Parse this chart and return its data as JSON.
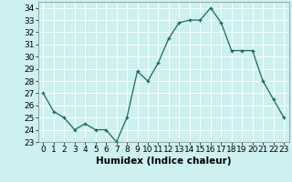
{
  "x": [
    0,
    1,
    2,
    3,
    4,
    5,
    6,
    7,
    8,
    9,
    10,
    11,
    12,
    13,
    14,
    15,
    16,
    17,
    18,
    19,
    20,
    21,
    22,
    23
  ],
  "y": [
    27,
    25.5,
    25,
    24,
    24.5,
    24,
    24,
    23,
    25,
    28.8,
    28,
    29.5,
    31.5,
    32.8,
    33,
    33,
    34,
    32.8,
    30.5,
    30.5,
    30.5,
    28,
    26.5,
    25
  ],
  "xlabel": "Humidex (Indice chaleur)",
  "ylim": [
    23,
    34.5
  ],
  "xlim": [
    -0.5,
    23.5
  ],
  "yticks": [
    23,
    24,
    25,
    26,
    27,
    28,
    29,
    30,
    31,
    32,
    33,
    34
  ],
  "xticks": [
    0,
    1,
    2,
    3,
    4,
    5,
    6,
    7,
    8,
    9,
    10,
    11,
    12,
    13,
    14,
    15,
    16,
    17,
    18,
    19,
    20,
    21,
    22,
    23
  ],
  "line_color": "#1a6b5a",
  "marker": "+",
  "bg_color": "#cdf0f0",
  "grid_color": "#ffffff",
  "axis_fontsize": 7,
  "tick_fontsize": 6.5,
  "xlabel_fontsize": 7.5
}
